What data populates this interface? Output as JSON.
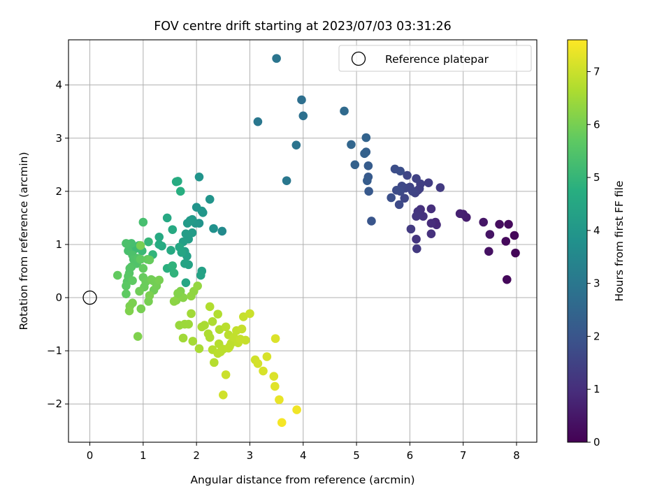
{
  "chart_data": {
    "type": "scatter",
    "title": "FOV centre drift starting at 2023/07/03 03:31:26",
    "xlabel": "Angular distance from reference (arcmin)",
    "ylabel": "Rotation from reference (arcmin)",
    "xlim": [
      -0.4,
      8.38
    ],
    "ylim": [
      -2.72,
      4.85
    ],
    "xticks": [
      0,
      1,
      2,
      3,
      4,
      5,
      6,
      7,
      8
    ],
    "yticks": [
      -2,
      -1,
      0,
      1,
      2,
      3,
      4
    ],
    "grid": true,
    "legend": {
      "placement": "top-right",
      "entries": [
        "Reference platepar"
      ]
    },
    "reference_point": {
      "name": "Reference platepar",
      "x": 0,
      "y": 0
    },
    "colorbar": {
      "label": "Hours from first FF file",
      "colormap": "viridis",
      "range": [
        0,
        7.6
      ],
      "ticks": [
        0,
        1,
        2,
        3,
        4,
        5,
        6,
        7
      ]
    },
    "points": [
      [
        7.82,
        0.34,
        0.15
      ],
      [
        7.98,
        0.84,
        0.1
      ],
      [
        7.96,
        1.17,
        0.12
      ],
      [
        7.85,
        1.38,
        0.2
      ],
      [
        7.8,
        1.06,
        0.18
      ],
      [
        7.68,
        1.38,
        0.25
      ],
      [
        7.48,
        0.87,
        0.35
      ],
      [
        7.5,
        1.19,
        0.4
      ],
      [
        7.38,
        1.42,
        0.45
      ],
      [
        7.06,
        1.51,
        0.6
      ],
      [
        7.0,
        1.57,
        0.65
      ],
      [
        6.94,
        1.58,
        0.7
      ],
      [
        6.5,
        1.37,
        0.9
      ],
      [
        6.48,
        1.42,
        0.85
      ],
      [
        6.4,
        1.4,
        0.95
      ],
      [
        6.4,
        1.67,
        1.0
      ],
      [
        6.4,
        1.2,
        1.05
      ],
      [
        6.25,
        1.53,
        1.1
      ],
      [
        6.2,
        1.66,
        1.05
      ],
      [
        6.15,
        1.62,
        1.15
      ],
      [
        6.12,
        1.53,
        1.2
      ],
      [
        6.12,
        1.1,
        1.15
      ],
      [
        6.13,
        0.92,
        1.25
      ],
      [
        6.02,
        1.29,
        1.3
      ],
      [
        6.57,
        2.07,
        1.3
      ],
      [
        6.35,
        2.16,
        1.35
      ],
      [
        6.2,
        2.14,
        1.4
      ],
      [
        6.18,
        2.05,
        1.4
      ],
      [
        6.15,
        2.02,
        1.45
      ],
      [
        6.12,
        2.24,
        1.5
      ],
      [
        6.1,
        1.97,
        1.5
      ],
      [
        6.05,
        2.0,
        1.55
      ],
      [
        6.0,
        2.08,
        1.55
      ],
      [
        5.95,
        2.3,
        1.6
      ],
      [
        5.92,
        2.06,
        1.6
      ],
      [
        5.9,
        1.87,
        1.6
      ],
      [
        5.85,
        2.1,
        1.65
      ],
      [
        5.82,
        2.0,
        1.7
      ],
      [
        5.8,
        1.75,
        1.7
      ],
      [
        5.75,
        2.02,
        1.75
      ],
      [
        5.72,
        2.42,
        1.8
      ],
      [
        5.82,
        2.38,
        1.8
      ],
      [
        5.65,
        1.88,
        1.85
      ],
      [
        5.28,
        1.44,
        2.0
      ],
      [
        5.22,
        2.48,
        2.2
      ],
      [
        5.23,
        2.0,
        2.1
      ],
      [
        5.22,
        2.27,
        2.15
      ],
      [
        5.2,
        2.2,
        2.2
      ],
      [
        5.18,
        2.74,
        2.3
      ],
      [
        5.15,
        2.71,
        2.35
      ],
      [
        5.18,
        3.01,
        2.4
      ],
      [
        4.97,
        2.5,
        2.35
      ],
      [
        4.9,
        2.88,
        2.5
      ],
      [
        4.77,
        3.51,
        2.6
      ],
      [
        4.0,
        3.42,
        2.8
      ],
      [
        3.97,
        3.72,
        2.75
      ],
      [
        3.87,
        2.87,
        2.9
      ],
      [
        3.69,
        2.2,
        3.0
      ],
      [
        3.15,
        3.31,
        3.0
      ],
      [
        3.5,
        4.5,
        2.95
      ],
      [
        2.48,
        1.25,
        3.6
      ],
      [
        2.32,
        1.3,
        3.8
      ],
      [
        2.25,
        1.85,
        3.9
      ],
      [
        2.12,
        1.6,
        4.0
      ],
      [
        2.1,
        1.63,
        3.95
      ],
      [
        2.05,
        1.4,
        3.85
      ],
      [
        2.05,
        2.27,
        3.9
      ],
      [
        2.0,
        1.7,
        3.9
      ],
      [
        1.98,
        1.4,
        4.0
      ],
      [
        1.92,
        1.47,
        4.05
      ],
      [
        1.88,
        1.45,
        4.1
      ],
      [
        1.83,
        1.4,
        4.1
      ],
      [
        1.92,
        1.22,
        4.15
      ],
      [
        1.85,
        1.1,
        4.2
      ],
      [
        1.8,
        1.2,
        4.2
      ],
      [
        1.75,
        1.05,
        4.25
      ],
      [
        1.78,
        0.87,
        4.3
      ],
      [
        1.82,
        0.78,
        4.3
      ],
      [
        1.85,
        0.62,
        4.35
      ],
      [
        1.78,
        0.64,
        4.4
      ],
      [
        1.72,
        0.85,
        4.45
      ],
      [
        1.68,
        0.95,
        4.5
      ],
      [
        2.1,
        0.5,
        4.3
      ],
      [
        2.08,
        0.42,
        4.35
      ],
      [
        1.8,
        0.28,
        4.5
      ],
      [
        1.65,
        2.19,
        4.7
      ],
      [
        1.7,
        2.0,
        4.75
      ],
      [
        1.62,
        2.18,
        4.65
      ],
      [
        1.55,
        1.28,
        4.6
      ],
      [
        1.45,
        1.5,
        4.55
      ],
      [
        1.35,
        0.97,
        4.6
      ],
      [
        1.3,
        1.0,
        4.65
      ],
      [
        1.3,
        1.14,
        4.6
      ],
      [
        1.52,
        0.89,
        4.6
      ],
      [
        1.45,
        0.55,
        4.8
      ],
      [
        1.58,
        0.46,
        4.9
      ],
      [
        1.55,
        0.6,
        4.9
      ],
      [
        1.18,
        0.81,
        4.95
      ],
      [
        1.1,
        1.05,
        5.0
      ],
      [
        0.98,
        0.88,
        5.1
      ],
      [
        0.92,
        0.98,
        5.05
      ],
      [
        0.85,
        0.92,
        5.15
      ],
      [
        1.0,
        1.42,
        5.3
      ],
      [
        0.78,
        1.02,
        5.3
      ],
      [
        0.72,
        0.88,
        5.35
      ],
      [
        0.68,
        1.02,
        5.4
      ],
      [
        0.8,
        0.8,
        5.4
      ],
      [
        0.82,
        0.72,
        5.45
      ],
      [
        0.88,
        0.64,
        5.45
      ],
      [
        0.9,
        0.74,
        5.5
      ],
      [
        0.78,
        0.58,
        5.5
      ],
      [
        0.75,
        0.55,
        5.55
      ],
      [
        0.74,
        0.46,
        5.55
      ],
      [
        0.72,
        0.4,
        5.6
      ],
      [
        0.7,
        0.3,
        5.6
      ],
      [
        0.68,
        0.22,
        5.65
      ],
      [
        0.68,
        0.07,
        5.7
      ],
      [
        0.8,
        0.32,
        5.7
      ],
      [
        0.52,
        0.42,
        5.75
      ],
      [
        0.95,
        0.72,
        5.7
      ],
      [
        1.0,
        0.55,
        5.75
      ],
      [
        1.08,
        0.72,
        5.75
      ],
      [
        1.12,
        0.71,
        5.8
      ],
      [
        1.0,
        0.38,
        5.8
      ],
      [
        1.05,
        0.3,
        5.85
      ],
      [
        1.02,
        0.2,
        5.85
      ],
      [
        0.93,
        0.12,
        5.9
      ],
      [
        1.15,
        0.34,
        5.9
      ],
      [
        1.2,
        0.14,
        5.9
      ],
      [
        1.18,
        0.32,
        5.95
      ],
      [
        1.25,
        0.22,
        5.95
      ],
      [
        1.3,
        0.33,
        6.0
      ],
      [
        1.1,
        -0.07,
        6.0
      ],
      [
        0.96,
        -0.21,
        6.0
      ],
      [
        0.8,
        -0.1,
        6.05
      ],
      [
        0.75,
        -0.16,
        6.05
      ],
      [
        0.74,
        -0.25,
        6.1
      ],
      [
        0.9,
        -0.73,
        6.1
      ],
      [
        0.95,
        0.98,
        6.0
      ],
      [
        1.12,
        0.04,
        6.05
      ],
      [
        1.7,
        0.12,
        6.1
      ],
      [
        1.75,
        0.0,
        6.2
      ],
      [
        1.62,
        -0.05,
        6.2
      ],
      [
        1.58,
        -0.07,
        6.25
      ],
      [
        1.65,
        0.08,
        6.15
      ],
      [
        1.9,
        0.03,
        6.3
      ],
      [
        1.95,
        0.12,
        6.3
      ],
      [
        2.02,
        0.22,
        6.35
      ],
      [
        1.68,
        -0.52,
        6.4
      ],
      [
        1.78,
        -0.5,
        6.45
      ],
      [
        1.85,
        -0.5,
        6.45
      ],
      [
        1.9,
        -0.3,
        6.5
      ],
      [
        1.75,
        -0.76,
        6.5
      ],
      [
        1.93,
        -0.82,
        6.55
      ],
      [
        2.05,
        -0.96,
        6.6
      ],
      [
        2.1,
        -0.55,
        6.6
      ],
      [
        2.15,
        -0.52,
        6.6
      ],
      [
        2.22,
        -0.68,
        6.65
      ],
      [
        2.25,
        -0.75,
        6.65
      ],
      [
        2.3,
        -0.45,
        6.65
      ],
      [
        2.25,
        -0.17,
        6.7
      ],
      [
        2.4,
        -0.31,
        6.7
      ],
      [
        2.43,
        -0.6,
        6.7
      ],
      [
        2.3,
        -0.98,
        6.75
      ],
      [
        2.33,
        -1.22,
        6.75
      ],
      [
        2.42,
        -0.87,
        6.75
      ],
      [
        2.4,
        -1.05,
        6.8
      ],
      [
        2.45,
        -1.02,
        6.8
      ],
      [
        2.5,
        -0.97,
        6.8
      ],
      [
        2.55,
        -0.55,
        6.8
      ],
      [
        2.6,
        -0.7,
        6.8
      ],
      [
        2.6,
        -0.95,
        6.85
      ],
      [
        2.62,
        -0.92,
        6.85
      ],
      [
        2.65,
        -0.86,
        6.85
      ],
      [
        2.7,
        -0.75,
        6.9
      ],
      [
        2.75,
        -0.62,
        6.9
      ],
      [
        2.78,
        -0.85,
        6.9
      ],
      [
        2.82,
        -0.78,
        6.95
      ],
      [
        2.85,
        -0.59,
        6.95
      ],
      [
        2.88,
        -0.36,
        6.95
      ],
      [
        2.92,
        -0.8,
        6.95
      ],
      [
        3.0,
        -0.3,
        7.0
      ],
      [
        2.55,
        -1.45,
        7.0
      ],
      [
        2.5,
        -1.83,
        7.05
      ],
      [
        3.1,
        -1.17,
        7.05
      ],
      [
        3.15,
        -1.24,
        7.1
      ],
      [
        3.25,
        -1.38,
        7.15
      ],
      [
        3.32,
        -1.11,
        7.15
      ],
      [
        3.45,
        -1.48,
        7.2
      ],
      [
        3.47,
        -1.67,
        7.25
      ],
      [
        3.48,
        -0.77,
        7.2
      ],
      [
        3.55,
        -1.92,
        7.35
      ],
      [
        3.6,
        -2.35,
        7.5
      ],
      [
        3.88,
        -2.11,
        7.45
      ]
    ]
  }
}
